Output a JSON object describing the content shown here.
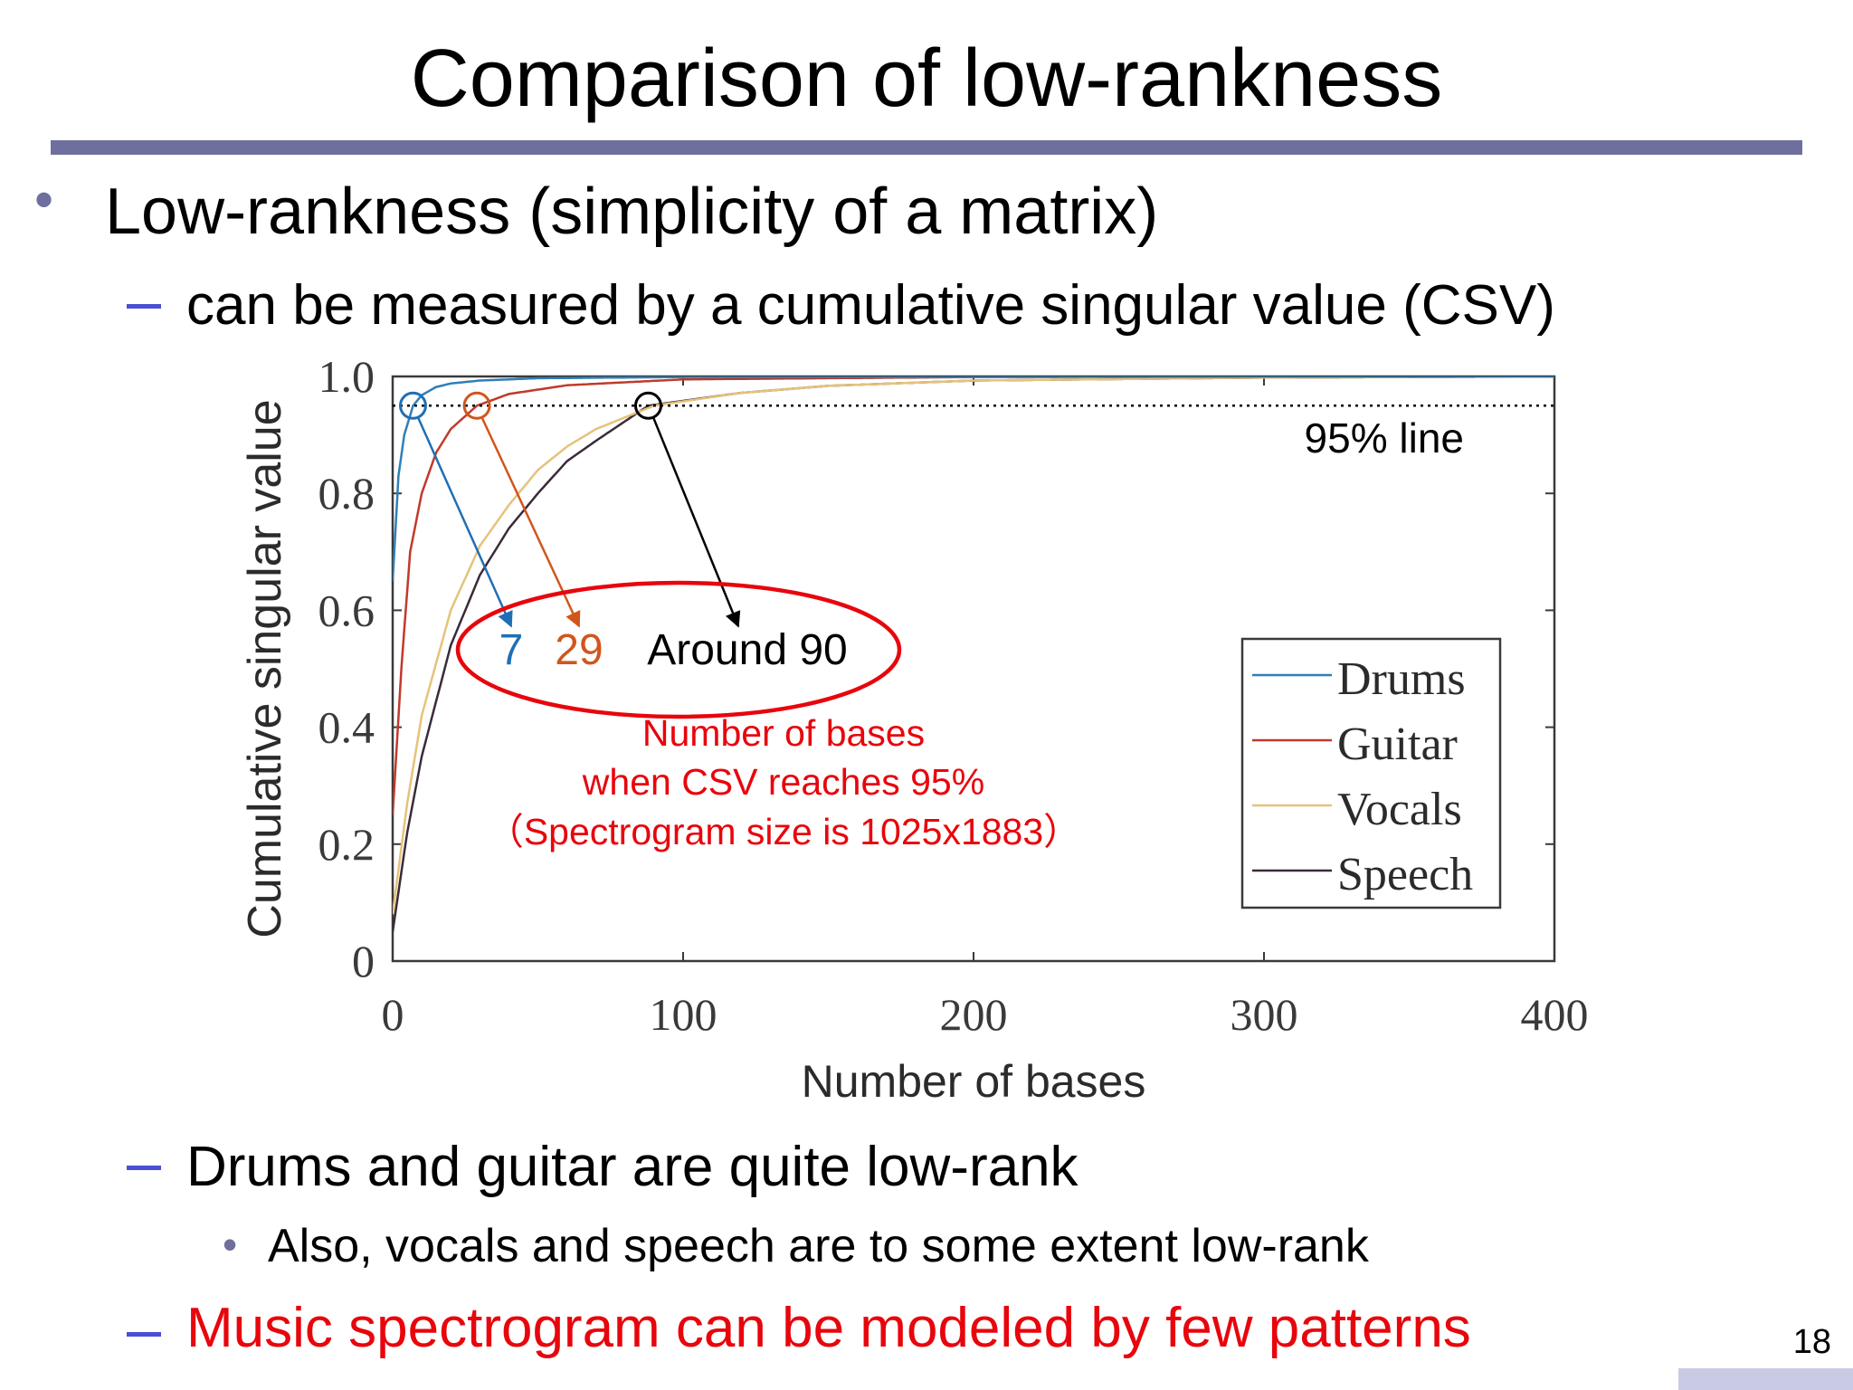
{
  "slide": {
    "title": "Comparison of low-rankness",
    "page_number": "18",
    "accent_color": "#6e6f9c",
    "emphasis_color": "#e8050c"
  },
  "bullets": {
    "b1": "Low-rankness (simplicity of a matrix)",
    "b1_1": "can be measured by a cumulative singular value (CSV)",
    "b1_2": "Drums and guitar are quite low-rank",
    "b1_2_1": "Also, vocals and speech are to some extent low-rank",
    "b1_3": "Music spectrogram can be modeled by few patterns"
  },
  "chart_data": {
    "type": "line",
    "xlabel": "Number of bases",
    "ylabel": "Cumulative singular value",
    "xlim": [
      0,
      400
    ],
    "ylim": [
      0,
      1.0
    ],
    "x_ticks": [
      "0",
      "100",
      "200",
      "300",
      "400"
    ],
    "y_ticks": [
      "0",
      "0.2",
      "0.4",
      "0.6",
      "0.8",
      "1.0"
    ],
    "legend_position": "inside-right",
    "reference_line": {
      "y": 0.95,
      "label": "95% line",
      "style": "dotted"
    },
    "series": [
      {
        "name": "Drums",
        "color": "#2f7fb5",
        "x": [
          0,
          2,
          4,
          7,
          10,
          15,
          20,
          30,
          50,
          100,
          400
        ],
        "y": [
          0.65,
          0.83,
          0.9,
          0.95,
          0.968,
          0.982,
          0.988,
          0.993,
          0.997,
          0.999,
          1.0
        ]
      },
      {
        "name": "Guitar",
        "color": "#c03a2b",
        "x": [
          0,
          3,
          6,
          10,
          15,
          20,
          29,
          40,
          60,
          100,
          200,
          400
        ],
        "y": [
          0.25,
          0.5,
          0.7,
          0.8,
          0.87,
          0.91,
          0.95,
          0.97,
          0.985,
          0.995,
          0.999,
          1.0
        ]
      },
      {
        "name": "Vocals",
        "color": "#e6c27a",
        "x": [
          0,
          5,
          10,
          20,
          30,
          40,
          50,
          60,
          70,
          90,
          120,
          150,
          200,
          300,
          400
        ],
        "y": [
          0.08,
          0.27,
          0.42,
          0.6,
          0.71,
          0.78,
          0.84,
          0.88,
          0.91,
          0.95,
          0.972,
          0.984,
          0.993,
          0.998,
          1.0
        ]
      },
      {
        "name": "Speech",
        "color": "#3b2a3a",
        "x": [
          0,
          5,
          10,
          20,
          30,
          40,
          50,
          60,
          70,
          88,
          120,
          150,
          200,
          300,
          400
        ],
        "y": [
          0.05,
          0.22,
          0.35,
          0.54,
          0.66,
          0.74,
          0.8,
          0.855,
          0.89,
          0.95,
          0.972,
          0.984,
          0.993,
          0.998,
          1.0
        ]
      }
    ],
    "annotations": {
      "drums_value": "7",
      "guitar_value": "29",
      "speech_value": "Around 90",
      "note_line1": "Number of bases",
      "note_line2": "when CSV reaches 95%",
      "note_line3": "（Spectrogram size is 1025x1883）",
      "drums_marker_x": 7,
      "guitar_marker_x": 29,
      "speech_marker_x": 88,
      "drums_color": "#1f6fb5",
      "guitar_color": "#d1561c",
      "speech_color": "#000000"
    }
  }
}
